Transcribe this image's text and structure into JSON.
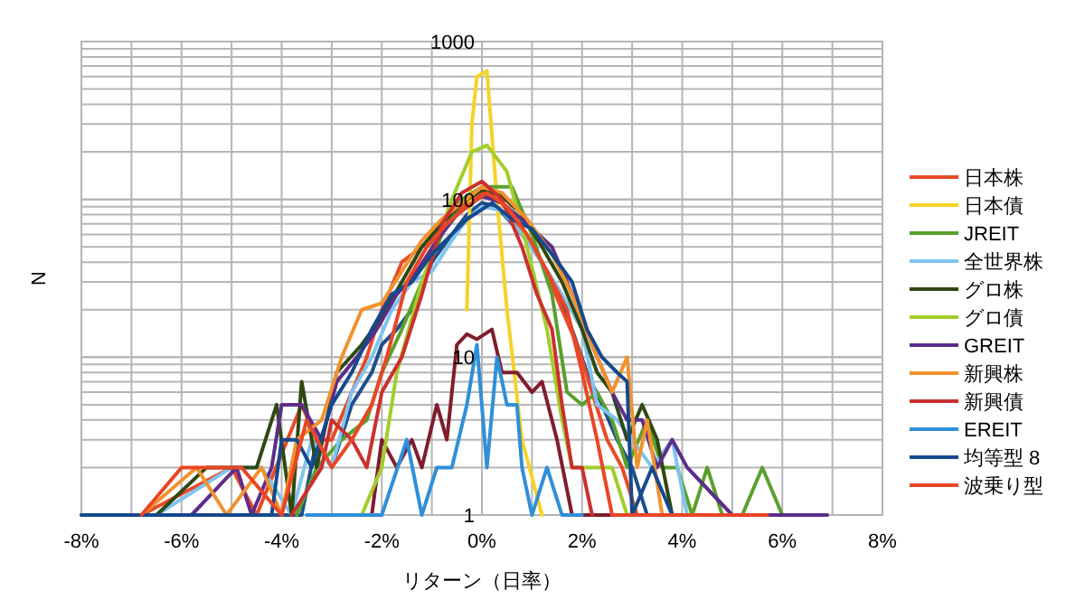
{
  "chart_data": {
    "type": "line",
    "xlabel": "リターン（日率）",
    "ylabel": "N",
    "log": "y",
    "grid": true,
    "legend": "right",
    "xlim": [
      -8,
      8
    ],
    "ylim": [
      1,
      1000
    ],
    "xticks": [
      {
        "value": -8,
        "label": "-8%"
      },
      {
        "value": -7,
        "label": null
      },
      {
        "value": -6,
        "label": "-6%"
      },
      {
        "value": -5,
        "label": null
      },
      {
        "value": -4,
        "label": "-4%"
      },
      {
        "value": -3,
        "label": null
      },
      {
        "value": -2,
        "label": "-2%"
      },
      {
        "value": -1,
        "label": null
      },
      {
        "value": 0,
        "label": "0%"
      },
      {
        "value": 1,
        "label": null
      },
      {
        "value": 2,
        "label": "2%"
      },
      {
        "value": 3,
        "label": null
      },
      {
        "value": 4,
        "label": "4%"
      },
      {
        "value": 5,
        "label": null
      },
      {
        "value": 6,
        "label": "6%"
      },
      {
        "value": 7,
        "label": null
      },
      {
        "value": 8,
        "label": "8%"
      }
    ],
    "yticks": [
      1,
      10,
      100,
      1000
    ],
    "series": [
      {
        "color": "#1f4e8c",
        "x": [
          -8,
          -3.6,
          -3.3,
          -3.0,
          -2.6,
          -2.2,
          -2.0,
          -1.7,
          -1.4,
          -1.0,
          -0.6,
          -0.3,
          0,
          0.3,
          0.6,
          0.9,
          1.2,
          1.5,
          1.8,
          2.1,
          2.4,
          2.7,
          3.0,
          3.3
        ],
        "values": [
          1,
          1,
          3,
          2,
          5,
          8,
          12,
          15,
          20,
          40,
          60,
          80,
          95,
          90,
          70,
          55,
          40,
          25,
          15,
          8,
          5,
          3,
          2,
          1
        ]
      },
      {
        "name": "日本株",
        "color": "#e84a27",
        "x": [
          -6.8,
          -5.0,
          -4.5,
          -3.6,
          -3.3,
          -3.0,
          -2.6,
          -2.3,
          -2.0,
          -1.6,
          -1.2,
          -0.8,
          -0.4,
          0,
          0.4,
          0.8,
          1.2,
          1.6,
          1.9,
          2.2,
          2.5,
          2.8,
          3.1
        ],
        "values": [
          1,
          2,
          1,
          5,
          3,
          3,
          6,
          10,
          20,
          40,
          50,
          70,
          90,
          110,
          95,
          60,
          40,
          20,
          12,
          6,
          3,
          2,
          1
        ]
      },
      {
        "name": "日本債",
        "color": "#f5d327",
        "x": [
          -0.3,
          -0.2,
          -0.1,
          0.1,
          0.3,
          0.5,
          0.8,
          1.2
        ],
        "values": [
          20,
          300,
          600,
          650,
          100,
          20,
          3,
          1
        ]
      },
      {
        "name": "JREIT",
        "color": "#5aa02c",
        "x": [
          -3.7,
          -3.3,
          -2.8,
          -2.3,
          -2.0,
          -1.6,
          -1.2,
          -0.8,
          -0.4,
          0,
          0.6,
          1.0,
          1.4,
          1.7,
          2.0,
          2.3,
          2.6,
          2.9,
          3.3,
          3.6,
          3.9,
          4.2,
          4.5,
          4.8,
          5.2,
          5.6,
          6.0
        ],
        "values": [
          1,
          2,
          3,
          4,
          8,
          15,
          30,
          60,
          100,
          120,
          120,
          60,
          25,
          6,
          5,
          6,
          4,
          2,
          4,
          2,
          2,
          1,
          2,
          1,
          1,
          2,
          1
        ]
      },
      {
        "color": "#7f1d2d",
        "x": [
          -2.2,
          -2.0,
          -1.7,
          -1.4,
          -1.2,
          -0.9,
          -0.7,
          -0.5,
          -0.3,
          -0.1,
          0.2,
          0.4,
          0.7,
          1.0,
          1.2,
          1.5,
          1.8,
          3.0
        ],
        "values": [
          1,
          3,
          2,
          3,
          2,
          5,
          3,
          12,
          14,
          13,
          15,
          8,
          8,
          6,
          7,
          3,
          1,
          1
        ]
      },
      {
        "name": "全世界株",
        "color": "#80c4f0",
        "x": [
          -6.5,
          -5.0,
          -4.4,
          -3.8,
          -3.4,
          -3.0,
          -2.6,
          -2.2,
          -1.8,
          -1.4,
          -1.0,
          -0.6,
          -0.3,
          0,
          0.4,
          0.8,
          1.2,
          1.6,
          2.0,
          2.3,
          2.7,
          3.0,
          3.4,
          3.8,
          4.1
        ],
        "values": [
          1,
          2,
          2,
          1,
          3,
          2,
          6,
          10,
          20,
          30,
          35,
          55,
          75,
          90,
          85,
          60,
          40,
          25,
          15,
          5,
          4,
          3,
          2,
          3,
          1
        ]
      },
      {
        "name": "グロ株",
        "color": "#2f4812",
        "x": [
          -6.5,
          -5.5,
          -4.5,
          -4.1,
          -3.8,
          -3.6,
          -3.3,
          -2.9,
          -2.4,
          -2.0,
          -1.6,
          -1.2,
          -0.8,
          -0.4,
          0,
          0.4,
          0.8,
          1.2,
          1.6,
          2.0,
          2.3,
          2.6,
          2.9,
          3.2,
          3.5,
          3.8
        ],
        "values": [
          1,
          2,
          2,
          5,
          1,
          7,
          2,
          8,
          12,
          18,
          30,
          50,
          70,
          95,
          115,
          105,
          80,
          50,
          30,
          15,
          8,
          6,
          3,
          5,
          3,
          1
        ]
      },
      {
        "name": "グロ債",
        "color": "#a2cd2a",
        "x": [
          -2.4,
          -2.0,
          -1.7,
          -1.2,
          -0.6,
          -0.2,
          0.1,
          0.5,
          0.9,
          1.3,
          1.6,
          1.8,
          2.6,
          2.9
        ],
        "values": [
          1,
          2,
          8,
          30,
          100,
          200,
          220,
          150,
          50,
          15,
          4,
          2,
          2,
          1
        ]
      },
      {
        "name": "GREIT",
        "color": "#5c2d8a",
        "x": [
          -5.8,
          -4.9,
          -4.6,
          -4.2,
          -4.0,
          -3.6,
          -3.2,
          -2.9,
          -2.5,
          -2.1,
          -1.7,
          -1.3,
          -0.9,
          -0.5,
          0,
          0.4,
          0.9,
          1.4,
          1.8,
          2.2,
          2.6,
          2.9,
          3.2,
          3.5,
          3.8,
          4.1,
          5.0,
          6.9
        ],
        "values": [
          1,
          2,
          1,
          2,
          5,
          5,
          3,
          7,
          10,
          15,
          25,
          35,
          55,
          80,
          105,
          95,
          70,
          50,
          25,
          12,
          6,
          4,
          4,
          2,
          3,
          2,
          1,
          1
        ]
      },
      {
        "name": "新興株",
        "color": "#f0922e",
        "x": [
          -6.8,
          -5.7,
          -5.1,
          -4.4,
          -4.0,
          -3.7,
          -3.2,
          -2.8,
          -2.4,
          -2.0,
          -1.6,
          -1.2,
          -0.8,
          -0.4,
          0,
          0.4,
          0.9,
          1.4,
          1.8,
          2.2,
          2.6,
          2.9,
          3.1,
          3.3,
          3.6
        ],
        "values": [
          1,
          2,
          1,
          2,
          1,
          3,
          4,
          10,
          20,
          22,
          35,
          55,
          75,
          95,
          120,
          110,
          75,
          45,
          25,
          12,
          6,
          10,
          2,
          4,
          1
        ]
      },
      {
        "name": "新興債",
        "color": "#cc2f2f",
        "x": [
          -3.8,
          -3.2,
          -3.0,
          -2.6,
          -2.3,
          -2.0,
          -1.6,
          -1.2,
          -0.8,
          -0.4,
          0,
          0.4,
          0.8,
          1.1,
          1.4,
          1.6,
          1.8,
          2.0,
          2.2
        ],
        "values": [
          1,
          2,
          4,
          3,
          2,
          6,
          10,
          25,
          70,
          110,
          130,
          100,
          50,
          25,
          15,
          5,
          2,
          2,
          1
        ]
      },
      {
        "name": "EREIT",
        "color": "#2f8fd8",
        "x": [
          -3.5,
          -2.0,
          -1.5,
          -1.2,
          -0.9,
          -0.6,
          -0.3,
          -0.1,
          0.1,
          0.3,
          0.5,
          0.7,
          0.8,
          1.0,
          1.3,
          1.6,
          2.0
        ],
        "values": [
          1,
          1,
          3,
          1,
          2,
          2,
          5,
          12,
          2,
          10,
          5,
          5,
          2,
          1,
          2,
          1,
          1
        ]
      },
      {
        "name": "均等型 8",
        "color": "#15498c",
        "x": [
          -8,
          -4.2,
          -4.0,
          -3.7,
          -3.4,
          -3.0,
          -2.6,
          -2.2,
          -1.8,
          -1.4,
          -1.0,
          -0.6,
          -0.3,
          0.2,
          0.6,
          1.0,
          1.4,
          1.8,
          2.1,
          2.4,
          2.7,
          2.9,
          3.0,
          3.4,
          3.8
        ],
        "values": [
          1,
          1,
          3,
          3,
          2,
          5,
          8,
          15,
          25,
          30,
          45,
          60,
          75,
          95,
          75,
          65,
          45,
          30,
          15,
          10,
          8,
          7,
          1,
          2,
          1
        ]
      },
      {
        "name": "波乗り型",
        "color": "#ea4525",
        "x": [
          -6.8,
          -6.0,
          -5.2,
          -4.8,
          -4.0,
          -3.5,
          -3.0,
          -2.6,
          -2.2,
          -1.9,
          -1.5,
          -1.1,
          -0.7,
          -0.3,
          0.1,
          0.5,
          0.9,
          1.3,
          1.7,
          2.0,
          2.3,
          2.6,
          5.7
        ],
        "values": [
          1,
          2,
          2,
          2,
          1,
          4,
          2,
          3,
          5,
          10,
          30,
          50,
          70,
          90,
          110,
          90,
          60,
          35,
          20,
          8,
          3,
          1,
          1
        ]
      }
    ]
  }
}
